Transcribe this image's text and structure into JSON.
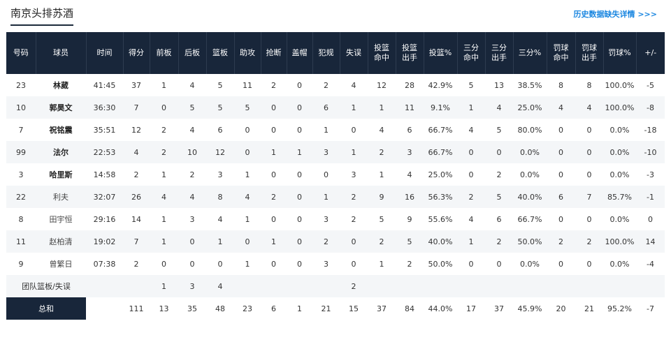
{
  "page": {
    "title": "南京头排苏酒",
    "history_link": "历史数据缺失详情 >>>"
  },
  "columns": [
    "号码",
    "球员",
    "时间",
    "得分",
    "前板",
    "后板",
    "篮板",
    "助攻",
    "抢断",
    "盖帽",
    "犯规",
    "失误",
    "投篮\n命中",
    "投篮\n出手",
    "投篮%",
    "三分\n命中",
    "三分\n出手",
    "三分%",
    "罚球\n命中",
    "罚球\n出手",
    "罚球%",
    "+/-"
  ],
  "players": [
    {
      "num": "23",
      "name": "林葳",
      "starter": true,
      "cells": [
        "41:45",
        "37",
        "1",
        "4",
        "5",
        "11",
        "2",
        "0",
        "2",
        "4",
        "12",
        "28",
        "42.9%",
        "5",
        "13",
        "38.5%",
        "8",
        "8",
        "100.0%",
        "-5"
      ]
    },
    {
      "num": "10",
      "name": "郭昊文",
      "starter": true,
      "cells": [
        "36:30",
        "7",
        "0",
        "5",
        "5",
        "5",
        "0",
        "0",
        "6",
        "1",
        "1",
        "11",
        "9.1%",
        "1",
        "4",
        "25.0%",
        "4",
        "4",
        "100.0%",
        "-8"
      ]
    },
    {
      "num": "7",
      "name": "祝铭震",
      "starter": true,
      "cells": [
        "35:51",
        "12",
        "2",
        "4",
        "6",
        "0",
        "0",
        "0",
        "1",
        "0",
        "4",
        "6",
        "66.7%",
        "4",
        "5",
        "80.0%",
        "0",
        "0",
        "0.0%",
        "-18"
      ]
    },
    {
      "num": "99",
      "name": "法尔",
      "starter": true,
      "cells": [
        "22:53",
        "4",
        "2",
        "10",
        "12",
        "0",
        "1",
        "1",
        "3",
        "1",
        "2",
        "3",
        "66.7%",
        "0",
        "0",
        "0.0%",
        "0",
        "0",
        "0.0%",
        "-10"
      ]
    },
    {
      "num": "3",
      "name": "哈里斯",
      "starter": true,
      "cells": [
        "14:58",
        "2",
        "1",
        "2",
        "3",
        "1",
        "0",
        "0",
        "0",
        "3",
        "1",
        "4",
        "25.0%",
        "0",
        "2",
        "0.0%",
        "0",
        "0",
        "0.0%",
        "-3"
      ]
    },
    {
      "num": "22",
      "name": "利夫",
      "starter": false,
      "cells": [
        "32:07",
        "26",
        "4",
        "4",
        "8",
        "4",
        "2",
        "0",
        "1",
        "2",
        "9",
        "16",
        "56.3%",
        "2",
        "5",
        "40.0%",
        "6",
        "7",
        "85.7%",
        "-1"
      ]
    },
    {
      "num": "8",
      "name": "田宇恒",
      "starter": false,
      "cells": [
        "29:16",
        "14",
        "1",
        "3",
        "4",
        "1",
        "0",
        "0",
        "3",
        "2",
        "5",
        "9",
        "55.6%",
        "4",
        "6",
        "66.7%",
        "0",
        "0",
        "0.0%",
        "0"
      ]
    },
    {
      "num": "11",
      "name": "赵柏清",
      "starter": false,
      "cells": [
        "19:02",
        "7",
        "1",
        "0",
        "1",
        "0",
        "1",
        "0",
        "2",
        "0",
        "2",
        "5",
        "40.0%",
        "1",
        "2",
        "50.0%",
        "2",
        "2",
        "100.0%",
        "14"
      ]
    },
    {
      "num": "9",
      "name": "曾繁日",
      "starter": false,
      "cells": [
        "07:38",
        "2",
        "0",
        "0",
        "0",
        "1",
        "0",
        "0",
        "3",
        "0",
        "1",
        "2",
        "50.0%",
        "0",
        "0",
        "0.0%",
        "0",
        "0",
        "0.0%",
        "-4"
      ]
    }
  ],
  "team_row": {
    "label": "团队篮板/失误",
    "cells": [
      "",
      "",
      "1",
      "3",
      "4",
      "",
      "",
      "",
      "",
      "2",
      "",
      "",
      "",
      "",
      "",
      "",
      "",
      "",
      "",
      ""
    ]
  },
  "total_row": {
    "label": "总和",
    "cells": [
      "",
      "111",
      "13",
      "35",
      "48",
      "23",
      "6",
      "1",
      "21",
      "15",
      "37",
      "84",
      "44.0%",
      "17",
      "37",
      "45.9%",
      "20",
      "21",
      "95.2%",
      "-7"
    ]
  }
}
